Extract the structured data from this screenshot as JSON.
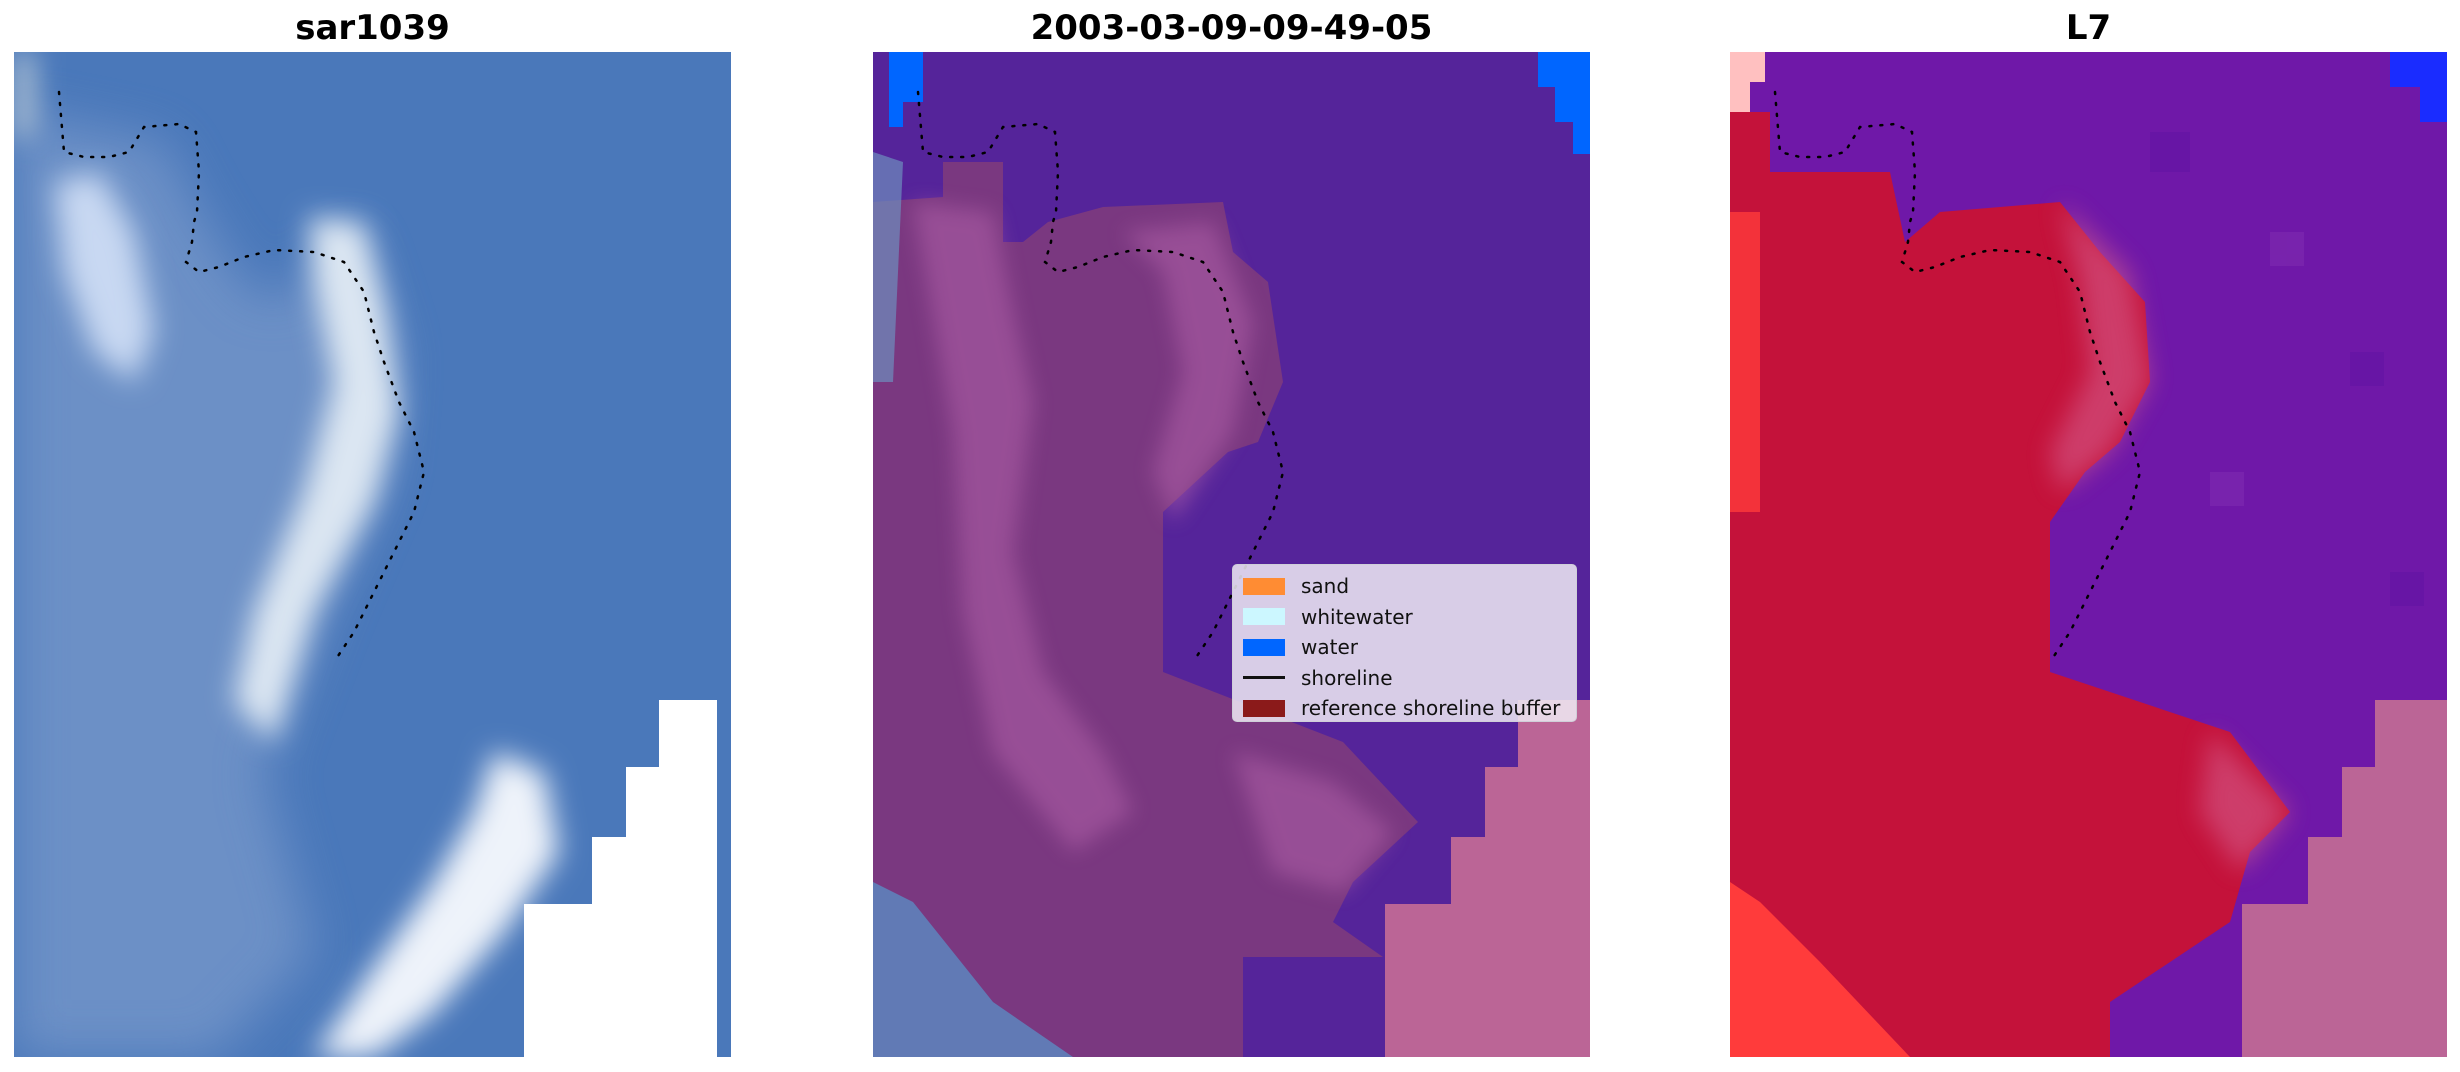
{
  "panels": [
    {
      "title": "sar1039"
    },
    {
      "title": "2003-03-09-09-49-05"
    },
    {
      "title": "L7"
    }
  ],
  "legend": {
    "items": [
      {
        "label": "sand",
        "color": "#ff8c33",
        "kind": "patch"
      },
      {
        "label": "whitewater",
        "color": "#ccf7ff",
        "kind": "patch"
      },
      {
        "label": "water",
        "color": "#0066ff",
        "kind": "patch"
      },
      {
        "label": "shoreline",
        "color": "#111111",
        "kind": "line"
      },
      {
        "label": "reference shoreline buffer",
        "color": "#8b1a1a",
        "kind": "patch"
      }
    ]
  },
  "colors": {
    "rgb_water": "#4f7fc0",
    "rgb_surf": "#d8e6f5",
    "class_water": "#55249a",
    "class_land": "#7a3880",
    "class_nodata": "#bb6596",
    "index_land": "#c4123a",
    "index_water": "#6f18a8",
    "index_edge": "#ff3b3b"
  }
}
